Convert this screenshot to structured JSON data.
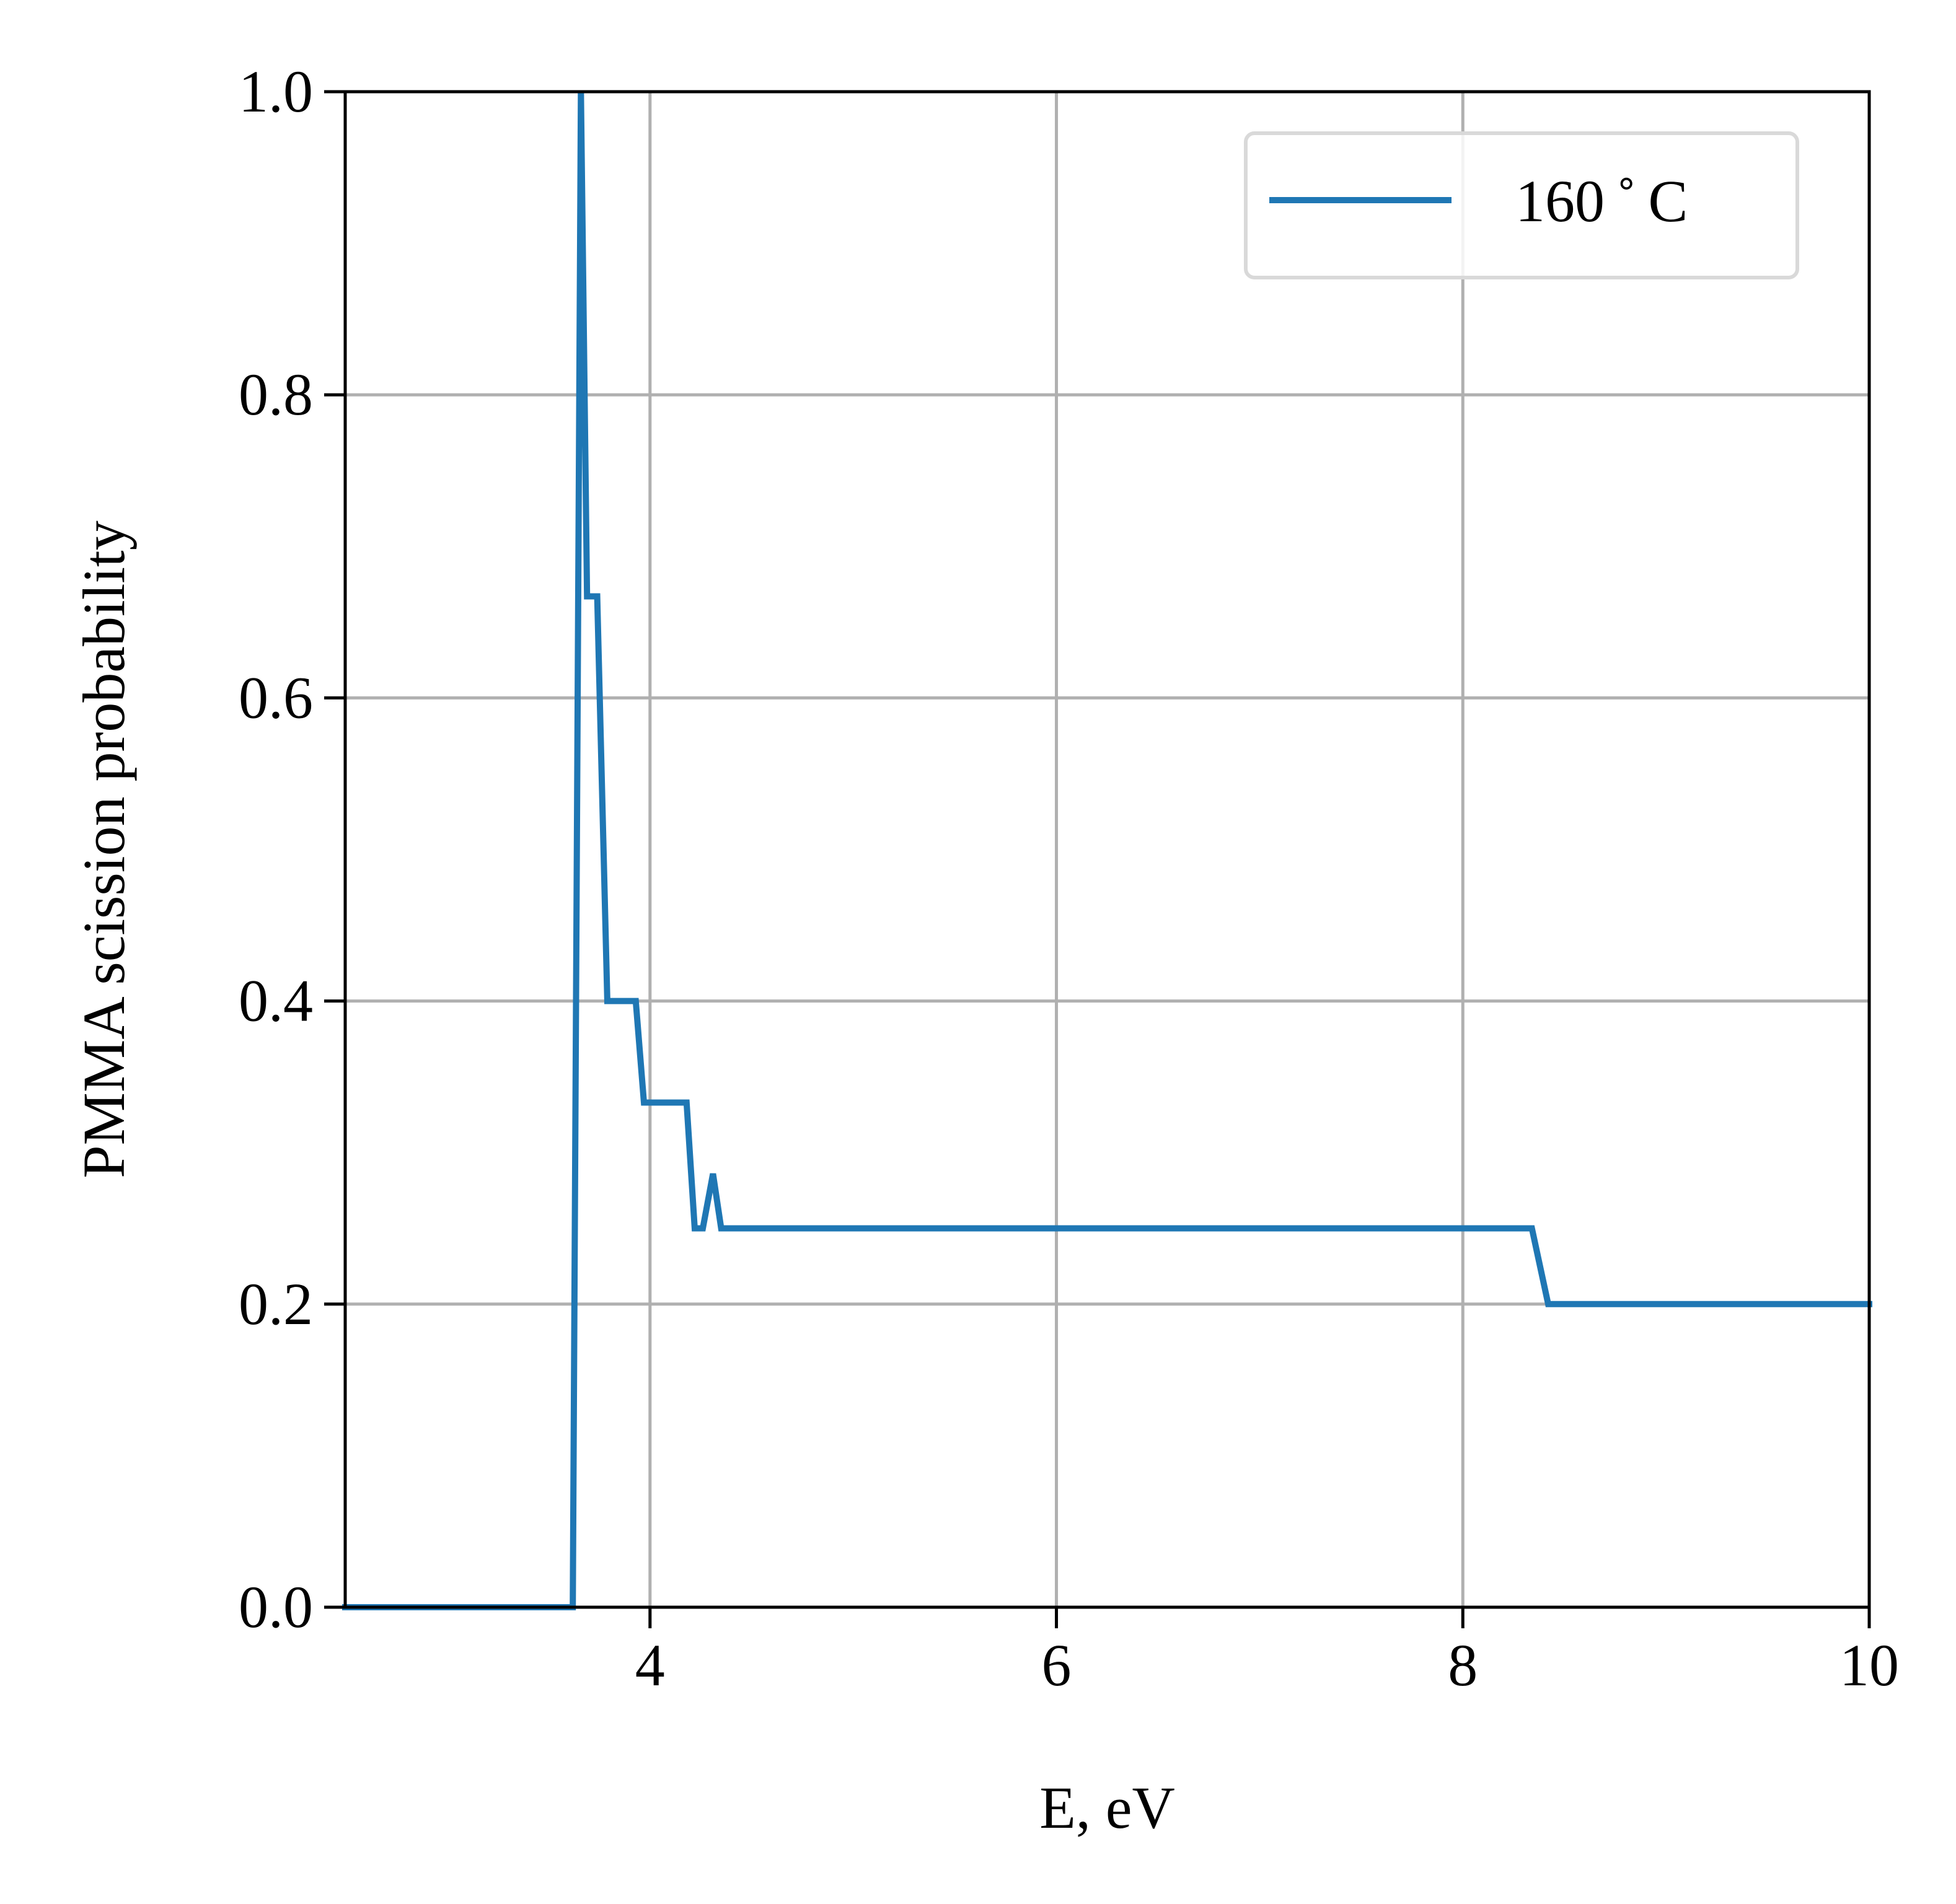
{
  "chart_data": {
    "type": "line",
    "title": "",
    "xlabel": "E, eV",
    "ylabel": "PMMA scission probability",
    "xlim": [
      2.5,
      10
    ],
    "ylim": [
      0.0,
      1.0
    ],
    "x_ticks": [
      4,
      6,
      8,
      10
    ],
    "x_tick_labels": [
      "4",
      "6",
      "8",
      "10"
    ],
    "y_ticks": [
      0.0,
      0.2,
      0.4,
      0.6,
      0.8,
      1.0
    ],
    "y_tick_labels": [
      "0.0",
      "0.2",
      "0.4",
      "0.6",
      "0.8",
      "1.0"
    ],
    "grid": true,
    "legend_position": "top-right",
    "series": [
      {
        "name": "160$^\\circ$C",
        "legend_label": "160 ˚ C",
        "color": "#1f77b4",
        "x": [
          2.5,
          3.62,
          3.66,
          3.69,
          3.74,
          3.79,
          3.93,
          3.97,
          4.18,
          4.22,
          4.26,
          4.31,
          4.35,
          8.34,
          8.42,
          10.0
        ],
        "y": [
          0.0,
          0.0,
          1.0,
          0.667,
          0.667,
          0.4,
          0.4,
          0.333,
          0.333,
          0.25,
          0.25,
          0.286,
          0.25,
          0.25,
          0.2,
          0.2
        ]
      }
    ]
  }
}
